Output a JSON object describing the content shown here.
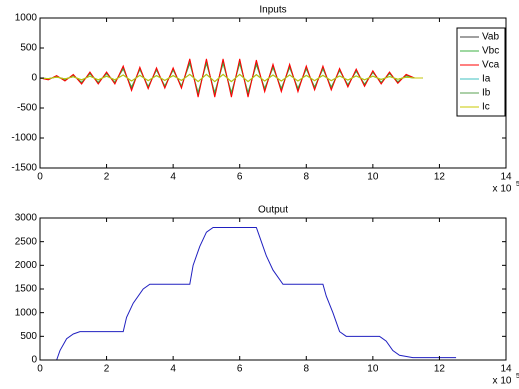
{
  "chart_data": [
    {
      "type": "line",
      "title": "Inputs",
      "x": [
        0,
        0.25,
        0.5,
        0.75,
        1,
        1.25,
        1.5,
        1.75,
        2,
        2.25,
        2.5,
        2.75,
        3,
        3.25,
        3.5,
        3.75,
        4,
        4.25,
        4.5,
        4.75,
        5,
        5.25,
        5.5,
        5.75,
        6,
        6.25,
        6.5,
        6.75,
        7,
        7.25,
        7.5,
        7.75,
        8,
        8.25,
        8.5,
        8.75,
        9,
        9.25,
        9.5,
        9.75,
        10,
        10.25,
        10.5,
        10.75,
        11,
        11.25,
        11.5
      ],
      "series": [
        {
          "name": "Vab",
          "color": "#404040",
          "values": [
            0,
            -25,
            30,
            -40,
            50,
            -80,
            80,
            -80,
            80,
            -80,
            160,
            -170,
            150,
            -150,
            140,
            -140,
            140,
            -140,
            260,
            -260,
            260,
            -260,
            260,
            -260,
            260,
            -260,
            240,
            -190,
            190,
            -190,
            190,
            -190,
            160,
            -160,
            160,
            -160,
            130,
            -120,
            120,
            -110,
            100,
            -80,
            80,
            -70,
            50,
            0,
            0
          ]
        },
        {
          "name": "Vbc",
          "color": "#3cb043",
          "values": [
            0,
            -20,
            30,
            -35,
            45,
            -70,
            70,
            -70,
            70,
            -70,
            150,
            -150,
            140,
            -140,
            130,
            -130,
            130,
            -130,
            240,
            -240,
            240,
            -240,
            240,
            -240,
            240,
            -240,
            220,
            -170,
            170,
            -170,
            170,
            -170,
            150,
            -150,
            150,
            -150,
            120,
            -110,
            110,
            -100,
            90,
            -70,
            70,
            -60,
            40,
            0,
            0
          ]
        },
        {
          "name": "Vca",
          "color": "#ff0000",
          "values": [
            0,
            -30,
            40,
            -50,
            60,
            -100,
            100,
            -100,
            100,
            -100,
            200,
            -210,
            180,
            -180,
            170,
            -170,
            170,
            -170,
            320,
            -320,
            320,
            -320,
            320,
            -320,
            320,
            -320,
            300,
            -230,
            230,
            -230,
            230,
            -230,
            200,
            -200,
            200,
            -200,
            160,
            -150,
            150,
            -140,
            120,
            -100,
            100,
            -90,
            60,
            0,
            0
          ]
        },
        {
          "name": "Ia",
          "color": "#40c0c0",
          "values": [
            0,
            -10,
            15,
            -15,
            20,
            -30,
            30,
            -30,
            30,
            -30,
            50,
            -50,
            45,
            -45,
            40,
            -40,
            40,
            -40,
            60,
            -60,
            60,
            -60,
            60,
            -60,
            60,
            -60,
            55,
            -50,
            50,
            -50,
            50,
            -50,
            45,
            -45,
            45,
            -45,
            35,
            -35,
            35,
            -30,
            30,
            -25,
            25,
            -20,
            15,
            0,
            0
          ]
        },
        {
          "name": "Ib",
          "color": "#5aa050",
          "values": [
            0,
            -10,
            15,
            -15,
            20,
            -30,
            30,
            -30,
            30,
            -30,
            50,
            -50,
            45,
            -45,
            40,
            -40,
            40,
            -40,
            60,
            -60,
            60,
            -60,
            60,
            -60,
            60,
            -60,
            55,
            -50,
            50,
            -50,
            50,
            -50,
            45,
            -45,
            45,
            -45,
            35,
            -35,
            35,
            -30,
            30,
            -25,
            25,
            -20,
            15,
            0,
            0
          ]
        },
        {
          "name": "Ic",
          "color": "#c8c800",
          "values": [
            0,
            -10,
            15,
            -15,
            20,
            -30,
            30,
            -30,
            30,
            -30,
            50,
            -50,
            45,
            -45,
            40,
            -40,
            40,
            -40,
            60,
            -60,
            60,
            -60,
            60,
            -60,
            60,
            -60,
            55,
            -50,
            50,
            -50,
            50,
            -50,
            45,
            -45,
            45,
            -45,
            35,
            -35,
            35,
            -30,
            30,
            -25,
            25,
            -20,
            15,
            0,
            0
          ]
        }
      ],
      "xlim": [
        0,
        14
      ],
      "xticks": [
        0,
        2,
        4,
        6,
        8,
        10,
        12,
        14
      ],
      "ylim": [
        -1500,
        1000
      ],
      "yticks": [
        -1500,
        -1000,
        -500,
        0,
        500,
        1000
      ],
      "x_scale_label": "x 10",
      "x_scale_exponent": "5",
      "legend": "upper right"
    },
    {
      "type": "line",
      "title": "Output",
      "x": [
        0,
        0.5,
        0.6,
        0.8,
        1.0,
        1.2,
        2.5,
        2.6,
        2.8,
        3.1,
        3.3,
        4.5,
        4.6,
        4.8,
        5.0,
        5.2,
        6.5,
        6.6,
        6.8,
        7.0,
        7.3,
        8.5,
        8.6,
        8.8,
        9.0,
        9.2,
        10.2,
        10.4,
        10.6,
        10.8,
        11.2,
        12.5
      ],
      "series": [
        {
          "color": "#2020c0",
          "values": [
            0,
            0,
            200,
            450,
            550,
            600,
            600,
            900,
            1200,
            1500,
            1600,
            1600,
            2000,
            2400,
            2700,
            2800,
            2800,
            2600,
            2200,
            1900,
            1600,
            1600,
            1350,
            1000,
            600,
            500,
            500,
            400,
            200,
            100,
            50,
            50
          ]
        }
      ],
      "xlim": [
        0,
        14
      ],
      "xticks": [
        0,
        2,
        4,
        6,
        8,
        10,
        12,
        14
      ],
      "ylim": [
        0,
        3000
      ],
      "yticks": [
        0,
        500,
        1000,
        1500,
        2000,
        2500,
        3000
      ],
      "x_scale_label": "x 10",
      "x_scale_exponent": "5"
    }
  ]
}
